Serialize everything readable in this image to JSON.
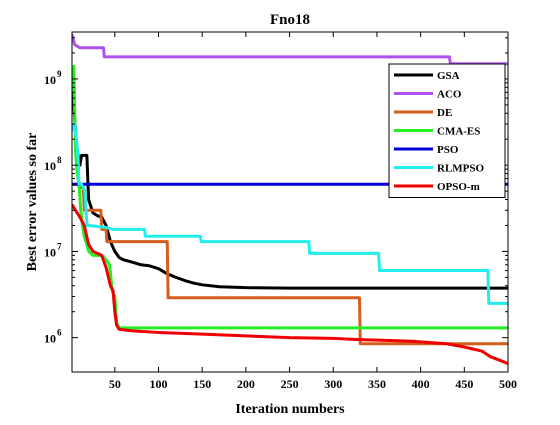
{
  "chart_data": {
    "type": "line",
    "title": "Fno18",
    "xlabel": "Iteration numbers",
    "ylabel": "Best error values so far",
    "xlim": [
      1,
      500
    ],
    "ylim": [
      400000,
      3500000000
    ],
    "yscale": "log",
    "grid": false,
    "legend_position": "top-right",
    "x_ticks": [
      50,
      100,
      150,
      200,
      250,
      300,
      350,
      400,
      450,
      500
    ],
    "y_ticks": [
      {
        "value": 1000000,
        "label": "10^6"
      },
      {
        "value": 10000000,
        "label": "10^7"
      },
      {
        "value": 100000000,
        "label": "10^8"
      },
      {
        "value": 1000000000,
        "label": "10^9"
      }
    ],
    "series": [
      {
        "name": "GSA",
        "color": "#000000",
        "points": [
          [
            1,
            900000000
          ],
          [
            3,
            500000000
          ],
          [
            5,
            250000000
          ],
          [
            7,
            150000000
          ],
          [
            10,
            100000000
          ],
          [
            12,
            130000000
          ],
          [
            18,
            130000000
          ],
          [
            20,
            40000000
          ],
          [
            25,
            28000000
          ],
          [
            30,
            26000000
          ],
          [
            35,
            25000000
          ],
          [
            40,
            20000000
          ],
          [
            45,
            13000000
          ],
          [
            50,
            10000000
          ],
          [
            55,
            8500000
          ],
          [
            60,
            8000000
          ],
          [
            70,
            7500000
          ],
          [
            80,
            7000000
          ],
          [
            90,
            6800000
          ],
          [
            100,
            6300000
          ],
          [
            110,
            5500000
          ],
          [
            120,
            5000000
          ],
          [
            130,
            4600000
          ],
          [
            140,
            4300000
          ],
          [
            150,
            4100000
          ],
          [
            170,
            3900000
          ],
          [
            200,
            3800000
          ],
          [
            250,
            3750000
          ],
          [
            300,
            3750000
          ],
          [
            400,
            3750000
          ],
          [
            500,
            3750000
          ]
        ]
      },
      {
        "name": "ACO",
        "color": "#b050ee",
        "points": [
          [
            1,
            3300000000
          ],
          [
            4,
            2500000000
          ],
          [
            10,
            2300000000
          ],
          [
            37,
            2300000000
          ],
          [
            38,
            1800000000
          ],
          [
            433,
            1800000000
          ],
          [
            434,
            1500000000
          ],
          [
            500,
            1500000000
          ]
        ]
      },
      {
        "name": "DE",
        "color": "#d35e1d",
        "points": [
          [
            1,
            60000000
          ],
          [
            8,
            60000000
          ],
          [
            10,
            55000000
          ],
          [
            14,
            55000000
          ],
          [
            15,
            30000000
          ],
          [
            34,
            30000000
          ],
          [
            35,
            18000000
          ],
          [
            40,
            18000000
          ],
          [
            41,
            13000000
          ],
          [
            82,
            13000000
          ],
          [
            83,
            13000000
          ],
          [
            110,
            13000000
          ],
          [
            111,
            2900000
          ],
          [
            330,
            2900000
          ],
          [
            331,
            850000
          ],
          [
            500,
            850000
          ]
        ]
      },
      {
        "name": "CMA-ES",
        "color": "#22ee22",
        "points": [
          [
            1,
            700000000
          ],
          [
            3,
            1400000000
          ],
          [
            5,
            150000000
          ],
          [
            7,
            80000000
          ],
          [
            9,
            60000000
          ],
          [
            11,
            30000000
          ],
          [
            13,
            20000000
          ],
          [
            15,
            15000000
          ],
          [
            18,
            12000000
          ],
          [
            20,
            10000000
          ],
          [
            25,
            9000000
          ],
          [
            35,
            9000000
          ],
          [
            40,
            8000000
          ],
          [
            44,
            7000000
          ],
          [
            47,
            3500000
          ],
          [
            50,
            3000000
          ],
          [
            52,
            1500000
          ],
          [
            55,
            1300000
          ],
          [
            500,
            1300000
          ]
        ]
      },
      {
        "name": "PSO",
        "color": "#0000dd",
        "points": [
          [
            1,
            60000000
          ],
          [
            500,
            60000000
          ]
        ]
      },
      {
        "name": "RLMPSO",
        "color": "#22eeee",
        "points": [
          [
            1,
            250000000
          ],
          [
            4,
            300000000
          ],
          [
            6,
            200000000
          ],
          [
            8,
            120000000
          ],
          [
            9,
            60000000
          ],
          [
            12,
            60000000
          ],
          [
            14,
            55000000
          ],
          [
            16,
            50000000
          ],
          [
            18,
            20000000
          ],
          [
            20,
            20000000
          ],
          [
            40,
            19000000
          ],
          [
            48,
            18000000
          ],
          [
            84,
            18000000
          ],
          [
            85,
            15000000
          ],
          [
            148,
            15000000
          ],
          [
            149,
            13000000
          ],
          [
            272,
            13000000
          ],
          [
            273,
            9500000
          ],
          [
            352,
            9500000
          ],
          [
            353,
            6000000
          ],
          [
            477,
            6000000
          ],
          [
            478,
            2500000
          ],
          [
            500,
            2500000
          ]
        ]
      },
      {
        "name": "OPSO-m",
        "color": "#ee0000",
        "points": [
          [
            1,
            35000000
          ],
          [
            5,
            30000000
          ],
          [
            10,
            25000000
          ],
          [
            15,
            20000000
          ],
          [
            20,
            12000000
          ],
          [
            25,
            10000000
          ],
          [
            30,
            9500000
          ],
          [
            35,
            9000000
          ],
          [
            40,
            6500000
          ],
          [
            45,
            4000000
          ],
          [
            48,
            3500000
          ],
          [
            50,
            2000000
          ],
          [
            52,
            1400000
          ],
          [
            55,
            1250000
          ],
          [
            70,
            1200000
          ],
          [
            100,
            1150000
          ],
          [
            150,
            1100000
          ],
          [
            200,
            1050000
          ],
          [
            250,
            1000000
          ],
          [
            300,
            980000
          ],
          [
            330,
            950000
          ],
          [
            360,
            930000
          ],
          [
            390,
            910000
          ],
          [
            410,
            880000
          ],
          [
            430,
            850000
          ],
          [
            450,
            780000
          ],
          [
            470,
            700000
          ],
          [
            480,
            600000
          ],
          [
            490,
            550000
          ],
          [
            500,
            500000
          ]
        ]
      }
    ]
  }
}
